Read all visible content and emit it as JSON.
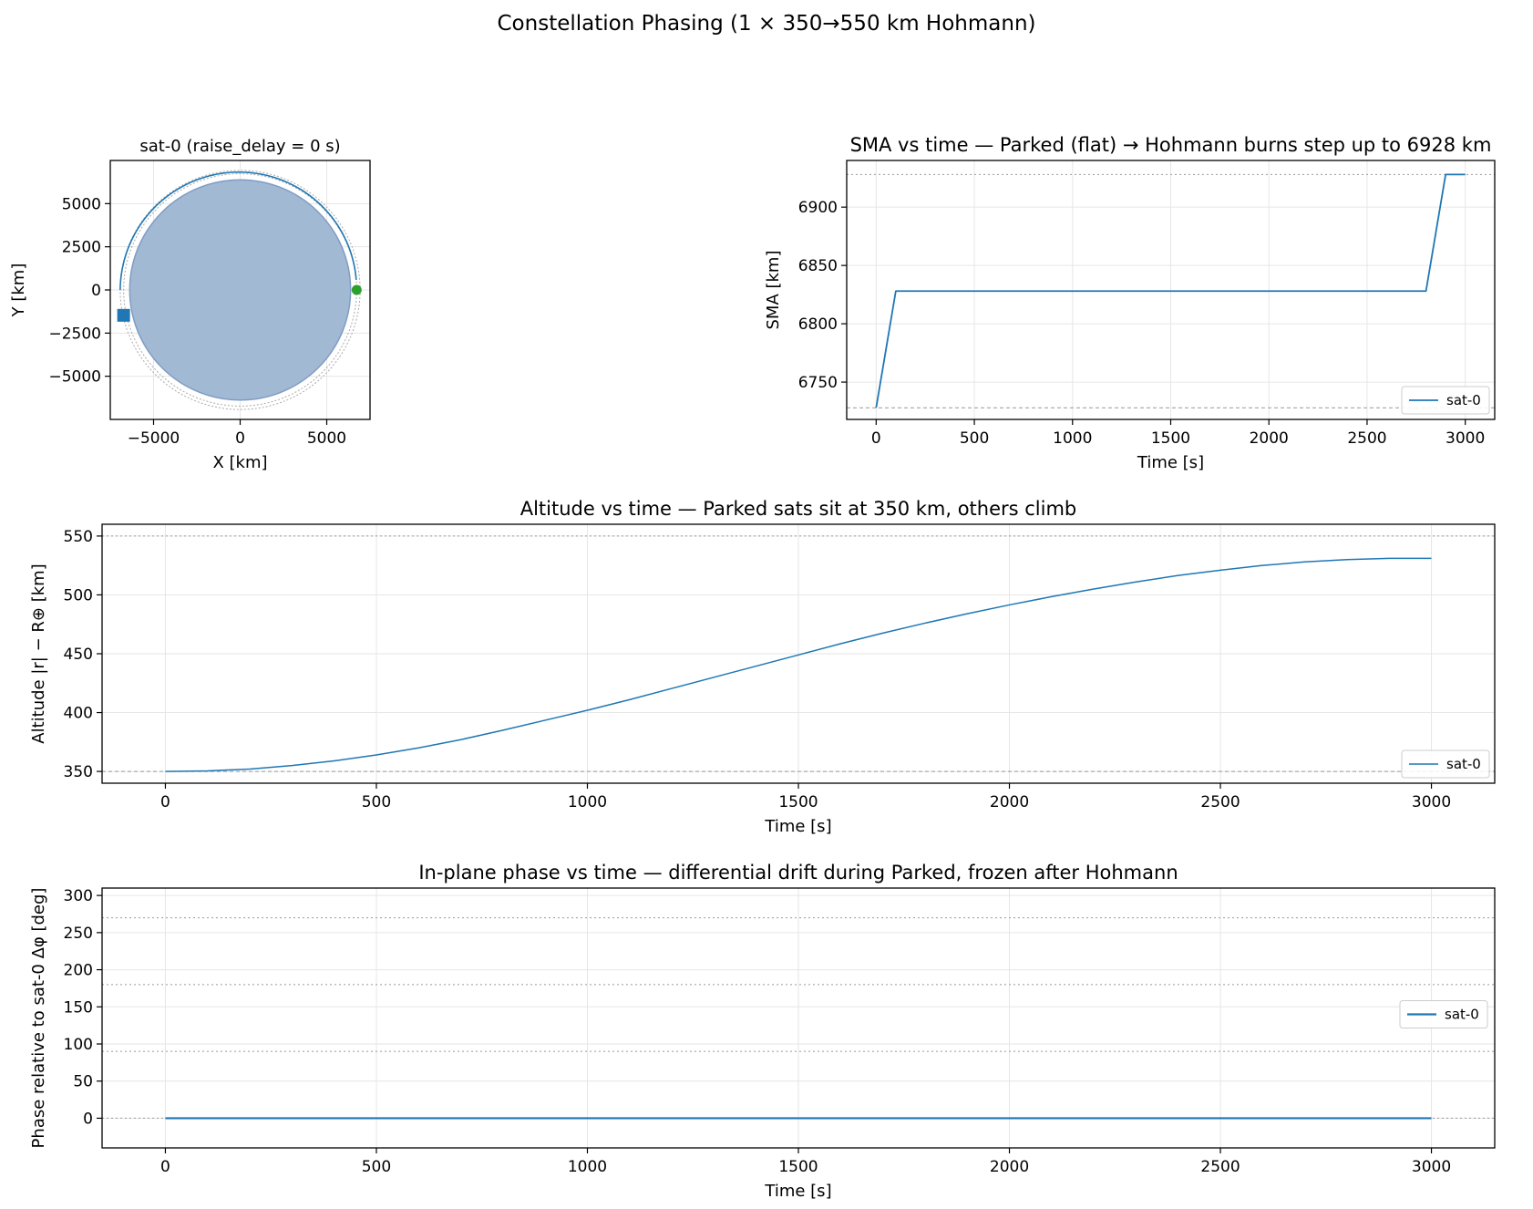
{
  "figure": {
    "title": "Constellation Phasing (1 × 350→550 km Hohmann)"
  },
  "colors": {
    "series": "#1f77b4",
    "earth_fill": "#a2b9d4",
    "earth_edge": "#7f9cc4",
    "start_marker": "#2ca02c",
    "ref_line": "#999999",
    "grid": "#e6e6e6"
  },
  "chart_data": [
    {
      "id": "orbit",
      "type": "scatter",
      "title": "sat-0 (raise_delay = 0 s)",
      "xlabel": "X [km]",
      "ylabel": "Y [km]",
      "xlim": [
        -7500,
        7500
      ],
      "ylim": [
        -7500,
        7500
      ],
      "xticks": [
        -5000,
        0,
        5000
      ],
      "xtick_labels": [
        "−5000",
        "0",
        "5000"
      ],
      "yticks": [
        5000,
        2500,
        0,
        -2500,
        -5000
      ],
      "ytick_labels": [
        "5000",
        "2500",
        "0",
        "−2500",
        "−5000"
      ],
      "earth_radius": 6378,
      "ref_circle_radii": [
        6728,
        6928
      ],
      "trajectory": {
        "start_angle_deg": 5,
        "end_angle_deg": 180,
        "start_radius": 6728,
        "end_radius": 6928
      },
      "start_marker": {
        "x": 6728,
        "y": 0,
        "shape": "circle"
      },
      "end_marker": {
        "x": -6730,
        "y": -1470,
        "shape": "square"
      },
      "grid": true
    },
    {
      "id": "sma",
      "type": "line",
      "title": "SMA vs time — Parked (flat) → Hohmann burns step up to 6928 km",
      "xlabel": "Time [s]",
      "ylabel": "SMA [km]",
      "xlim": [
        -150,
        3150
      ],
      "ylim": [
        6718,
        6940
      ],
      "xticks": [
        0,
        500,
        1000,
        1500,
        2000,
        2500,
        3000
      ],
      "xtick_labels": [
        "0",
        "500",
        "1000",
        "1500",
        "2000",
        "2500",
        "3000"
      ],
      "yticks": [
        6750,
        6800,
        6850,
        6900
      ],
      "ytick_labels": [
        "6750",
        "6800",
        "6850",
        "6900"
      ],
      "ref_lines": [
        6728,
        6928
      ],
      "series": [
        {
          "name": "sat-0",
          "x": [
            0,
            100,
            2800,
            2900,
            3000
          ],
          "y": [
            6728,
            6828,
            6828,
            6928,
            6928
          ]
        }
      ],
      "legend": "lower-right",
      "grid": true
    },
    {
      "id": "altitude",
      "type": "line",
      "title": "Altitude vs time — Parked sats sit at 350 km, others climb",
      "xlabel": "Time [s]",
      "ylabel": "Altitude |r| − R⊕ [km]",
      "xlim": [
        -150,
        3150
      ],
      "ylim": [
        340,
        560
      ],
      "xticks": [
        0,
        500,
        1000,
        1500,
        2000,
        2500,
        3000
      ],
      "xtick_labels": [
        "0",
        "500",
        "1000",
        "1500",
        "2000",
        "2500",
        "3000"
      ],
      "yticks": [
        350,
        400,
        450,
        500,
        550
      ],
      "ytick_labels": [
        "350",
        "400",
        "450",
        "500",
        "550"
      ],
      "ref_lines": [
        350,
        550
      ],
      "series": [
        {
          "name": "sat-0",
          "x": [
            0,
            100,
            200,
            300,
            400,
            500,
            600,
            700,
            800,
            900,
            1000,
            1100,
            1200,
            1300,
            1400,
            1500,
            1600,
            1700,
            1800,
            1900,
            2000,
            2100,
            2200,
            2300,
            2400,
            2500,
            2600,
            2700,
            2800,
            2900,
            3000
          ],
          "y": [
            350,
            350.5,
            352,
            355,
            359,
            364,
            370,
            377,
            385,
            393.5,
            402,
            411,
            420.5,
            430,
            439.5,
            449,
            458.5,
            467.5,
            476,
            484,
            491.5,
            498.5,
            505,
            511,
            516.5,
            521,
            525,
            528,
            530,
            531,
            531
          ]
        }
      ],
      "legend": "lower-right",
      "grid": true
    },
    {
      "id": "phase",
      "type": "line",
      "title": "In-plane phase vs time — differential drift during Parked, frozen after Hohmann",
      "xlabel": "Time [s]",
      "ylabel": "Phase relative to sat-0 Δφ [deg]",
      "xlim": [
        -150,
        3150
      ],
      "ylim": [
        -40,
        310
      ],
      "xticks": [
        0,
        500,
        1000,
        1500,
        2000,
        2500,
        3000
      ],
      "xtick_labels": [
        "0",
        "500",
        "1000",
        "1500",
        "2000",
        "2500",
        "3000"
      ],
      "yticks": [
        0,
        50,
        100,
        150,
        200,
        250,
        300
      ],
      "ytick_labels": [
        "0",
        "50",
        "100",
        "150",
        "200",
        "250",
        "300"
      ],
      "ref_lines": [
        0,
        90,
        180,
        270
      ],
      "series": [
        {
          "name": "sat-0",
          "x": [
            0,
            3000
          ],
          "y": [
            0,
            0
          ]
        }
      ],
      "legend": "center-right",
      "grid": true
    }
  ]
}
